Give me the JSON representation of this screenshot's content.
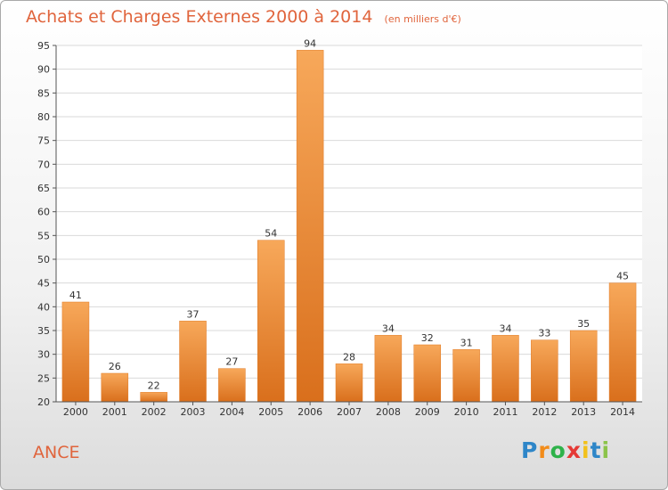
{
  "header": {
    "title": "Achats et Charges Externes 2000 à 2014",
    "unit": "(en milliers d'€)"
  },
  "footer": {
    "commune": "ANCE",
    "logo_letters": [
      "P",
      "r",
      "o",
      "x",
      "i",
      "t",
      "i"
    ],
    "logo_colors": [
      "#2e86c8",
      "#f28c1a",
      "#2eb24a",
      "#e53935",
      "#f2c11a",
      "#2e86c8",
      "#8bc34a"
    ]
  },
  "colors": {
    "bar_light": "#f7a85a",
    "bar_dark": "#d96f1c",
    "grid": "#d9d9d9",
    "text_accent": "#e0643c"
  },
  "chart_data": {
    "type": "bar",
    "title": "Achats et Charges Externes 2000 à 2014",
    "subtitle": "(en milliers d'€)",
    "categories": [
      "2000",
      "2001",
      "2002",
      "2003",
      "2004",
      "2005",
      "2006",
      "2007",
      "2008",
      "2009",
      "2010",
      "2011",
      "2012",
      "2013",
      "2014"
    ],
    "values": [
      41,
      26,
      22,
      37,
      27,
      54,
      94,
      28,
      34,
      32,
      31,
      34,
      33,
      35,
      45
    ],
    "ylim": [
      20,
      95
    ],
    "yticks": [
      20,
      25,
      30,
      35,
      40,
      45,
      50,
      55,
      60,
      65,
      70,
      75,
      80,
      85,
      90,
      95
    ],
    "grid": true,
    "show_value_labels": true
  }
}
